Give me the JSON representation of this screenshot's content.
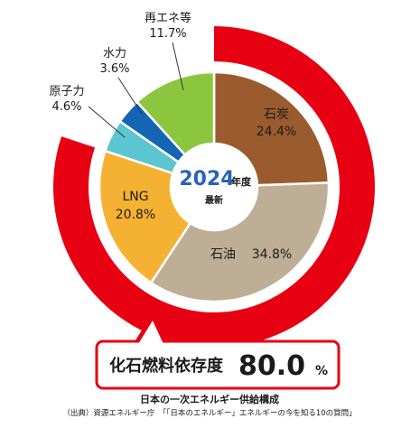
{
  "chart_data": {
    "type": "pie",
    "categories": [
      "石炭",
      "石油",
      "LNG",
      "原子力",
      "水力",
      "再エネ等"
    ],
    "values": [
      24.4,
      34.8,
      20.8,
      4.6,
      3.6,
      11.7
    ],
    "value_labels": [
      "24.4%",
      "34.8%",
      "20.8%",
      "4.6%",
      "3.6%",
      "11.7%"
    ],
    "colors": [
      "#9a5c2e",
      "#bfae96",
      "#f5b131",
      "#5bc5d0",
      "#1466b4",
      "#8cc63f"
    ],
    "outer_ring": {
      "label": "化石燃料依存度",
      "value": 80.0,
      "value_label": "80.0",
      "unit": "%",
      "color": "#e60012"
    },
    "center": {
      "year": "2024",
      "year_suffix": "年度",
      "note": "最新"
    }
  },
  "footer": {
    "title": "日本の一次エネルギー供給構成",
    "source": "（出典）資源エネルギー庁　「「日本のエネルギー」エネルギーの今を知る10の質問」"
  }
}
